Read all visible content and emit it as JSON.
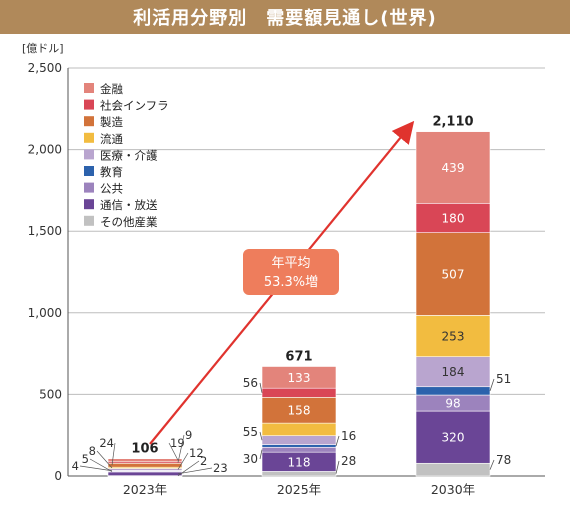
{
  "title": "利活用分野別　需要額見通し(世界)",
  "unit_label": "[億ドル]",
  "colors": {
    "金融": "#e3847b",
    "社会インフラ": "#d94656",
    "製造": "#d2733a",
    "流通": "#f2bc40",
    "医療・介護": "#b9a5cf",
    "教育": "#2c62ac",
    "公共": "#9c83bd",
    "通信・放送": "#6a4596",
    "その他産業": "#c1c1c1",
    "title_bg": "#b0895a",
    "arrow": "#e0332e",
    "callout_bg": "#ee7d5c"
  },
  "callout": {
    "line1": "年平均",
    "line2": "53.3%増"
  },
  "chart_data": {
    "type": "bar",
    "stacked": true,
    "categories": [
      "2023年",
      "2025年",
      "2030年"
    ],
    "totals": [
      "106",
      "671",
      "2,110"
    ],
    "ylim": [
      0,
      2500
    ],
    "yticks": [
      0,
      500,
      1000,
      1500,
      2000,
      2500
    ],
    "ytick_labels": [
      "0",
      "500",
      "1,000",
      "1,500",
      "2,000",
      "2,500"
    ],
    "grid": true,
    "legend_position": "top-left",
    "series": [
      {
        "name": "その他産業",
        "values": [
          2,
          28,
          78
        ],
        "labels": [
          "2",
          "28",
          "78"
        ]
      },
      {
        "name": "通信・放送",
        "values": [
          23,
          118,
          320
        ],
        "labels": [
          "23",
          "118",
          "320"
        ]
      },
      {
        "name": "公共",
        "values": [
          5,
          30,
          98
        ],
        "labels": [
          "5",
          "30",
          "98"
        ]
      },
      {
        "name": "教育",
        "values": [
          4,
          16,
          51
        ],
        "labels": [
          "4",
          "16",
          "51"
        ]
      },
      {
        "name": "医療・介護",
        "values": [
          12,
          55,
          184
        ],
        "labels": [
          "12",
          "55",
          "184"
        ]
      },
      {
        "name": "流通",
        "values": [
          8,
          77,
          253
        ],
        "labels": [
          "8",
          "77",
          "253"
        ]
      },
      {
        "name": "製造",
        "values": [
          24,
          158,
          507
        ],
        "labels": [
          "24",
          "158",
          "507"
        ]
      },
      {
        "name": "社会インフラ",
        "values": [
          9,
          56,
          180
        ],
        "labels": [
          "9",
          "56",
          "180"
        ]
      },
      {
        "name": "金融",
        "values": [
          19,
          133,
          439
        ],
        "labels": [
          "19",
          "133",
          "439"
        ]
      }
    ],
    "legend_order": [
      "金融",
      "社会インフラ",
      "製造",
      "流通",
      "医療・介護",
      "教育",
      "公共",
      "通信・放送",
      "その他産業"
    ]
  }
}
